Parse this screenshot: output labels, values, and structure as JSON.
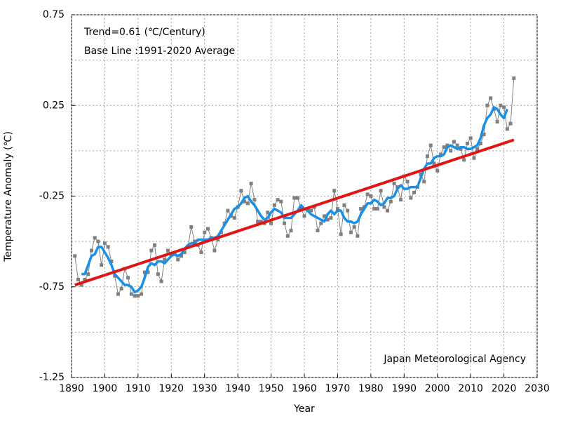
{
  "chart_data": {
    "type": "line",
    "xlabel": "Year",
    "ylabel": "Temperature Anomaly (℃)",
    "annotations": [
      "Trend=0.61 (℃/Century)",
      "Base Line :1991-2020 Average",
      "Japan Meteorological Agency"
    ],
    "xlim": [
      1890,
      2030
    ],
    "xticks": [
      1890,
      1900,
      1910,
      1920,
      1930,
      1940,
      1950,
      1960,
      1970,
      1980,
      1990,
      2000,
      2010,
      2020,
      2030
    ],
    "ylim": [
      -1.25,
      0.75
    ],
    "yticks": [
      0.75,
      0.25,
      -0.25,
      -0.75,
      -1.25
    ],
    "yminor": [
      0.5,
      0,
      -0.5,
      -1
    ],
    "grid": true,
    "series": [
      {
        "color": "#808080",
        "markers": true,
        "x": [
          1891,
          1892,
          1893,
          1894,
          1895,
          1896,
          1897,
          1898,
          1899,
          1900,
          1901,
          1902,
          1903,
          1904,
          1905,
          1906,
          1907,
          1908,
          1909,
          1910,
          1911,
          1912,
          1913,
          1914,
          1915,
          1916,
          1917,
          1918,
          1919,
          1920,
          1921,
          1922,
          1923,
          1924,
          1925,
          1926,
          1927,
          1928,
          1929,
          1930,
          1931,
          1932,
          1933,
          1934,
          1935,
          1936,
          1937,
          1938,
          1939,
          1940,
          1941,
          1942,
          1943,
          1944,
          1945,
          1946,
          1947,
          1948,
          1949,
          1950,
          1951,
          1952,
          1953,
          1954,
          1955,
          1956,
          1957,
          1958,
          1959,
          1960,
          1961,
          1962,
          1963,
          1964,
          1965,
          1966,
          1967,
          1968,
          1969,
          1970,
          1971,
          1972,
          1973,
          1974,
          1975,
          1976,
          1977,
          1978,
          1979,
          1980,
          1981,
          1982,
          1983,
          1984,
          1985,
          1986,
          1987,
          1988,
          1989,
          1990,
          1991,
          1992,
          1993,
          1994,
          1995,
          1996,
          1997,
          1998,
          1999,
          2000,
          2001,
          2002,
          2003,
          2004,
          2005,
          2006,
          2007,
          2008,
          2009,
          2010,
          2011,
          2012,
          2013,
          2014,
          2015,
          2016,
          2017,
          2018,
          2019,
          2020,
          2021,
          2022,
          2023
        ],
        "values": [
          -0.58,
          -0.71,
          -0.74,
          -0.71,
          -0.68,
          -0.55,
          -0.48,
          -0.5,
          -0.63,
          -0.51,
          -0.53,
          -0.61,
          -0.69,
          -0.79,
          -0.76,
          -0.65,
          -0.7,
          -0.79,
          -0.8,
          -0.8,
          -0.79,
          -0.67,
          -0.67,
          -0.55,
          -0.52,
          -0.68,
          -0.72,
          -0.6,
          -0.55,
          -0.57,
          -0.57,
          -0.6,
          -0.58,
          -0.56,
          -0.53,
          -0.42,
          -0.5,
          -0.52,
          -0.56,
          -0.45,
          -0.43,
          -0.48,
          -0.55,
          -0.49,
          -0.45,
          -0.4,
          -0.33,
          -0.36,
          -0.37,
          -0.31,
          -0.22,
          -0.28,
          -0.29,
          -0.18,
          -0.27,
          -0.39,
          -0.39,
          -0.4,
          -0.34,
          -0.4,
          -0.3,
          -0.27,
          -0.28,
          -0.4,
          -0.47,
          -0.44,
          -0.26,
          -0.26,
          -0.32,
          -0.36,
          -0.32,
          -0.33,
          -0.31,
          -0.44,
          -0.4,
          -0.36,
          -0.38,
          -0.37,
          -0.22,
          -0.32,
          -0.46,
          -0.3,
          -0.33,
          -0.45,
          -0.42,
          -0.47,
          -0.32,
          -0.31,
          -0.24,
          -0.25,
          -0.32,
          -0.32,
          -0.22,
          -0.31,
          -0.33,
          -0.28,
          -0.18,
          -0.2,
          -0.27,
          -0.14,
          -0.17,
          -0.26,
          -0.23,
          -0.2,
          -0.13,
          -0.17,
          -0.03,
          0.03,
          -0.07,
          -0.11,
          -0.02,
          0.02,
          0.03,
          0.0,
          0.05,
          0.03,
          0.01,
          -0.05,
          0.04,
          0.07,
          -0.04,
          0.01,
          0.04,
          0.09,
          0.25,
          0.29,
          0.23,
          0.16,
          0.25,
          0.24,
          0.12,
          0.15,
          0.4
        ]
      },
      {
        "color": "#1a8fe6",
        "markers": false,
        "x": [
          1893,
          1894,
          1895,
          1896,
          1897,
          1898,
          1899,
          1900,
          1901,
          1902,
          1903,
          1904,
          1905,
          1906,
          1907,
          1908,
          1909,
          1910,
          1911,
          1912,
          1913,
          1914,
          1915,
          1916,
          1917,
          1918,
          1919,
          1920,
          1921,
          1922,
          1923,
          1924,
          1925,
          1926,
          1927,
          1928,
          1929,
          1930,
          1931,
          1932,
          1933,
          1934,
          1935,
          1936,
          1937,
          1938,
          1939,
          1940,
          1941,
          1942,
          1943,
          1944,
          1945,
          1946,
          1947,
          1948,
          1949,
          1950,
          1951,
          1952,
          1953,
          1954,
          1955,
          1956,
          1957,
          1958,
          1959,
          1960,
          1961,
          1962,
          1963,
          1964,
          1965,
          1966,
          1967,
          1968,
          1969,
          1970,
          1971,
          1972,
          1973,
          1974,
          1975,
          1976,
          1977,
          1978,
          1979,
          1980,
          1981,
          1982,
          1983,
          1984,
          1985,
          1986,
          1987,
          1988,
          1989,
          1990,
          1991,
          1992,
          1993,
          1994,
          1995,
          1996,
          1997,
          1998,
          1999,
          2000,
          2001,
          2002,
          2003,
          2004,
          2005,
          2006,
          2007,
          2008,
          2009,
          2010,
          2011,
          2012,
          2013,
          2014,
          2015,
          2016,
          2017,
          2018,
          2019,
          2020,
          2021
        ],
        "values": [
          -0.68,
          -0.68,
          -0.63,
          -0.58,
          -0.57,
          -0.53,
          -0.53,
          -0.56,
          -0.59,
          -0.63,
          -0.68,
          -0.7,
          -0.72,
          -0.74,
          -0.74,
          -0.75,
          -0.78,
          -0.77,
          -0.75,
          -0.7,
          -0.64,
          -0.62,
          -0.63,
          -0.61,
          -0.61,
          -0.62,
          -0.6,
          -0.58,
          -0.57,
          -0.58,
          -0.57,
          -0.54,
          -0.52,
          -0.51,
          -0.51,
          -0.49,
          -0.49,
          -0.49,
          -0.49,
          -0.48,
          -0.48,
          -0.47,
          -0.44,
          -0.41,
          -0.38,
          -0.35,
          -0.32,
          -0.31,
          -0.29,
          -0.26,
          -0.25,
          -0.28,
          -0.3,
          -0.33,
          -0.36,
          -0.38,
          -0.37,
          -0.34,
          -0.32,
          -0.33,
          -0.34,
          -0.37,
          -0.37,
          -0.37,
          -0.35,
          -0.33,
          -0.3,
          -0.32,
          -0.33,
          -0.35,
          -0.36,
          -0.37,
          -0.38,
          -0.39,
          -0.35,
          -0.33,
          -0.35,
          -0.33,
          -0.33,
          -0.37,
          -0.39,
          -0.39,
          -0.4,
          -0.39,
          -0.35,
          -0.32,
          -0.29,
          -0.29,
          -0.27,
          -0.28,
          -0.3,
          -0.29,
          -0.26,
          -0.26,
          -0.25,
          -0.21,
          -0.19,
          -0.21,
          -0.21,
          -0.2,
          -0.2,
          -0.2,
          -0.15,
          -0.1,
          -0.07,
          -0.07,
          -0.04,
          -0.03,
          -0.03,
          -0.02,
          0.02,
          0.03,
          0.02,
          0.01,
          0.02,
          0.02,
          0.01,
          0.01,
          0.02,
          0.03,
          0.07,
          0.14,
          0.18,
          0.2,
          0.24,
          0.23,
          0.2,
          0.18,
          0.23
        ]
      },
      {
        "color": "#e01515",
        "markers": false,
        "x": [
          1891,
          2023
        ],
        "values": [
          -0.74,
          0.06
        ]
      }
    ]
  }
}
